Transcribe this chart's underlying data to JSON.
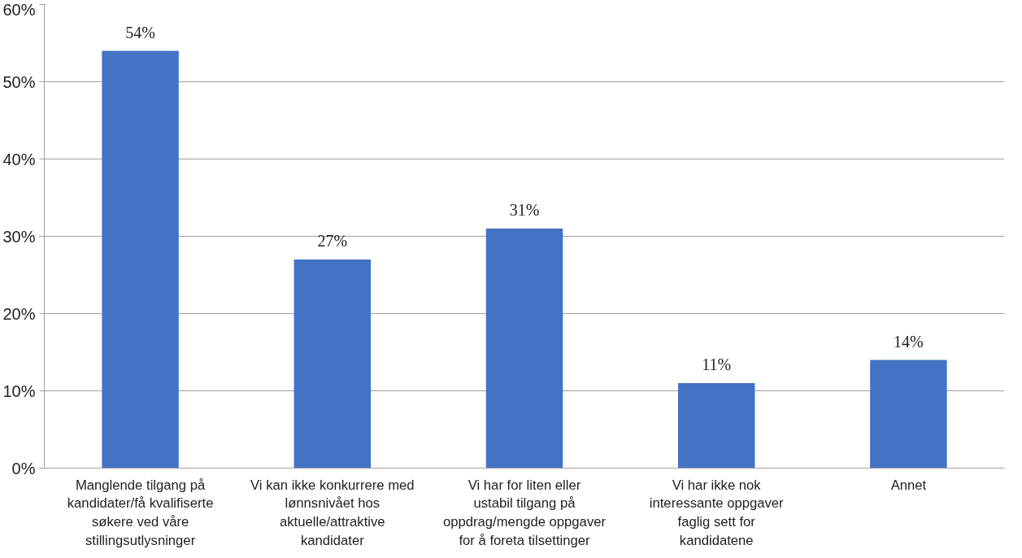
{
  "chart_data": {
    "type": "bar",
    "categories": [
      "Manglende tilgang på kandidater/få kvalifiserte søkere ved våre stillingsutlysninger",
      "Vi kan ikke konkurrere med lønnsnivået hos aktuelle/attraktive kandidater",
      "Vi har for liten eller ustabil tilgang på oppdrag/mengde oppgaver for å foreta tilsettinger",
      "Vi har ikke nok interessante oppgaver faglig sett for kandidatene",
      "Annet"
    ],
    "values": [
      54,
      27,
      31,
      11,
      14
    ],
    "value_labels": [
      "54%",
      "27%",
      "31%",
      "11%",
      "14%"
    ],
    "color": "#4472c4",
    "ylim": [
      0,
      60
    ],
    "yticks": [
      {
        "value": 0,
        "label": "0%"
      },
      {
        "value": 10,
        "label": "10%"
      },
      {
        "value": 20,
        "label": "20%"
      },
      {
        "value": 30,
        "label": "30%"
      },
      {
        "value": 40,
        "label": "40%"
      },
      {
        "value": 50,
        "label": "50%"
      },
      {
        "value": 60,
        "label": "60%"
      }
    ],
    "grid": "y"
  }
}
